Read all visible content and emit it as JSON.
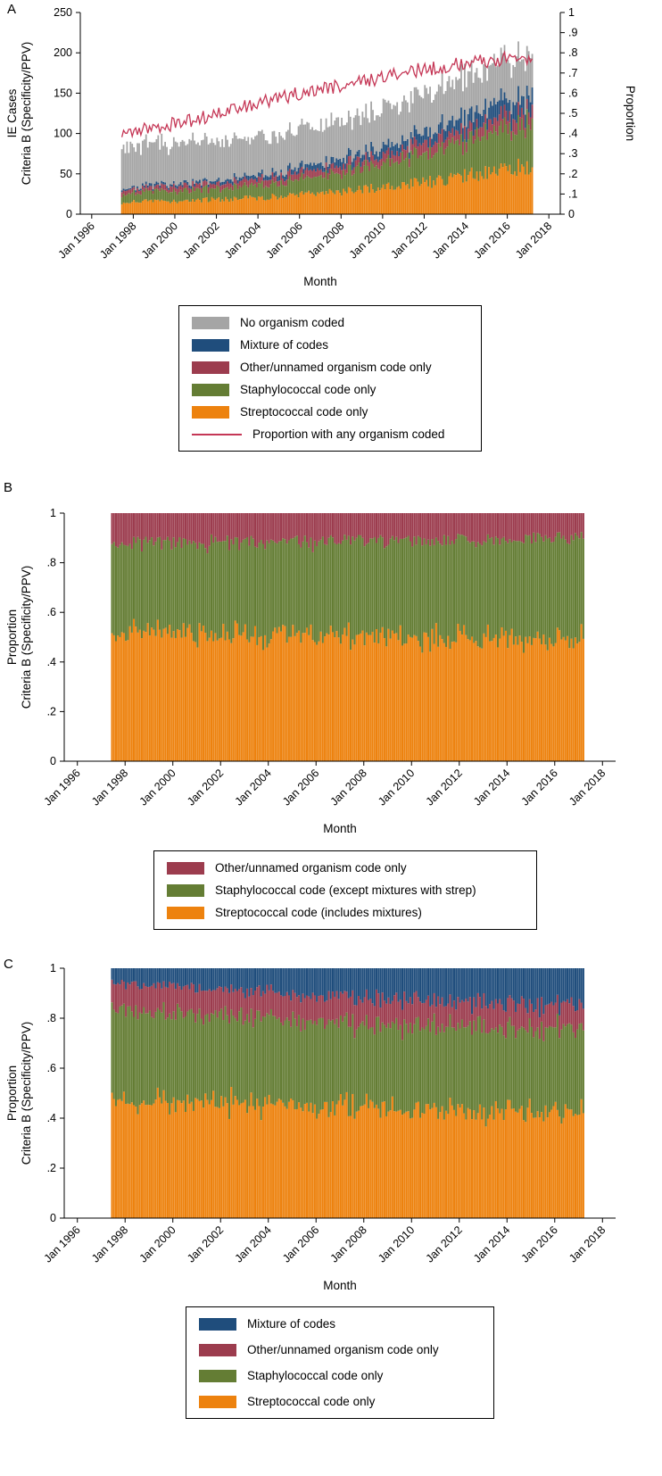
{
  "chart_data": [
    {
      "panel_label": "A",
      "type": "bar",
      "stacked": true,
      "normalize": false,
      "seed": 7,
      "xlabel": "Month",
      "ylabel_lines": [
        "IE Cases",
        "Criteria B (Specificity/PPV)"
      ],
      "ylabel_right": "Proportion",
      "ylim": [
        0,
        250
      ],
      "xlim": [
        1995.45,
        2018.55
      ],
      "bar_start": 1997.45,
      "bar_end": 2017.2,
      "anchor_year0": 1997,
      "yticks": [
        {
          "v": 0,
          "label": "0"
        },
        {
          "v": 50,
          "label": "50"
        },
        {
          "v": 100,
          "label": "100"
        },
        {
          "v": 150,
          "label": "150"
        },
        {
          "v": 200,
          "label": "200"
        },
        {
          "v": 250,
          "label": "250"
        }
      ],
      "y2ticks": [
        {
          "v": 0,
          "label": "0"
        },
        {
          "v": 0.1,
          "label": ".1"
        },
        {
          "v": 0.2,
          "label": ".2"
        },
        {
          "v": 0.3,
          "label": ".3"
        },
        {
          "v": 0.4,
          "label": ".4"
        },
        {
          "v": 0.5,
          "label": ".5"
        },
        {
          "v": 0.6,
          "label": ".6"
        },
        {
          "v": 0.7,
          "label": ".7"
        },
        {
          "v": 0.8,
          "label": ".8"
        },
        {
          "v": 0.9,
          "label": ".9"
        },
        {
          "v": 1,
          "label": "1"
        }
      ],
      "xticks": [
        {
          "v": 1996,
          "label": "Jan 1996"
        },
        {
          "v": 1998,
          "label": "Jan 1998"
        },
        {
          "v": 2000,
          "label": "Jan 2000"
        },
        {
          "v": 2002,
          "label": "Jan 2002"
        },
        {
          "v": 2004,
          "label": "Jan 2004"
        },
        {
          "v": 2006,
          "label": "Jan 2006"
        },
        {
          "v": 2008,
          "label": "Jan 2008"
        },
        {
          "v": 2010,
          "label": "Jan 2010"
        },
        {
          "v": 2012,
          "label": "Jan 2012"
        },
        {
          "v": 2014,
          "label": "Jan 2014"
        },
        {
          "v": 2016,
          "label": "Jan 2016"
        },
        {
          "v": 2018,
          "label": "Jan 2018"
        }
      ],
      "series": [
        {
          "name": "Streptococcal code only",
          "color": "#ed820e",
          "noise": 0.2,
          "annual": [
            15,
            15,
            16,
            16,
            17,
            18,
            19,
            20,
            22,
            24,
            26,
            28,
            30,
            33,
            36,
            39,
            43,
            47,
            52,
            57,
            60
          ]
        },
        {
          "name": "Staphylococcal code only",
          "color": "#647d34",
          "noise": 0.22,
          "annual": [
            11,
            11,
            12,
            12,
            13,
            14,
            15,
            16,
            17,
            19,
            21,
            23,
            26,
            29,
            32,
            36,
            40,
            44,
            48,
            52,
            55
          ]
        },
        {
          "name": "Other/unnamed organism code only",
          "color": "#9c3c4e",
          "noise": 0.3,
          "annual": [
            5,
            5,
            5,
            6,
            6,
            6,
            7,
            7,
            8,
            8,
            9,
            9,
            10,
            11,
            11,
            12,
            13,
            13,
            14,
            15,
            16
          ]
        },
        {
          "name": "Mixture of codes",
          "color": "#1f4d7c",
          "noise": 0.32,
          "annual": [
            2,
            2,
            3,
            3,
            3,
            4,
            4,
            5,
            5,
            6,
            7,
            8,
            9,
            10,
            11,
            13,
            14,
            16,
            18,
            20,
            22
          ]
        },
        {
          "name": "No organism coded",
          "color": "#a5a5a5",
          "noise": 0.18,
          "annual": [
            51,
            50,
            50,
            49,
            49,
            48,
            48,
            47,
            47,
            47,
            47,
            47,
            47,
            47,
            48,
            48,
            49,
            49,
            50,
            50,
            50
          ]
        }
      ],
      "line_series": {
        "name": "Proportion with any organism coded",
        "color": "#c53756",
        "axis": "right",
        "noise": 0.035,
        "annual": [
          0.39,
          0.41,
          0.43,
          0.45,
          0.47,
          0.5,
          0.52,
          0.55,
          0.57,
          0.6,
          0.62,
          0.64,
          0.66,
          0.68,
          0.7,
          0.72,
          0.73,
          0.75,
          0.76,
          0.77,
          0.78
        ]
      },
      "legend": {
        "position": "bottom",
        "entries": [
          {
            "label": "No organism coded",
            "color": "#a5a5a5",
            "type": "box"
          },
          {
            "label": "Mixture of codes",
            "color": "#1f4d7c",
            "type": "box"
          },
          {
            "label": "Other/unnamed organism code only",
            "color": "#9c3c4e",
            "type": "box"
          },
          {
            "label": "Staphylococcal code only",
            "color": "#647d34",
            "type": "box"
          },
          {
            "label": "Streptococcal code only",
            "color": "#ed820e",
            "type": "box"
          },
          {
            "label": "Proportion with any organism coded",
            "color": "#c53756",
            "type": "line"
          }
        ]
      }
    },
    {
      "panel_label": "B",
      "type": "bar",
      "stacked": true,
      "normalize": true,
      "seed": 11,
      "xlabel": "Month",
      "ylabel_lines": [
        "Proportion",
        "Criteria B (Specificity/PPV)"
      ],
      "ylim": [
        0,
        1
      ],
      "xlim": [
        1995.45,
        2018.55
      ],
      "bar_start": 1997.45,
      "bar_end": 2017.2,
      "anchor_year0": 1997,
      "yticks": [
        {
          "v": 0,
          "label": "0"
        },
        {
          "v": 0.2,
          "label": ".2"
        },
        {
          "v": 0.4,
          "label": ".4"
        },
        {
          "v": 0.6,
          "label": ".6"
        },
        {
          "v": 0.8,
          "label": ".8"
        },
        {
          "v": 1,
          "label": "1"
        }
      ],
      "xticks": [
        {
          "v": 1996,
          "label": "Jan 1996"
        },
        {
          "v": 1998,
          "label": "Jan 1998"
        },
        {
          "v": 2000,
          "label": "Jan 2000"
        },
        {
          "v": 2002,
          "label": "Jan 2002"
        },
        {
          "v": 2004,
          "label": "Jan 2004"
        },
        {
          "v": 2006,
          "label": "Jan 2006"
        },
        {
          "v": 2008,
          "label": "Jan 2008"
        },
        {
          "v": 2010,
          "label": "Jan 2010"
        },
        {
          "v": 2012,
          "label": "Jan 2012"
        },
        {
          "v": 2014,
          "label": "Jan 2014"
        },
        {
          "v": 2016,
          "label": "Jan 2016"
        },
        {
          "v": 2018,
          "label": "Jan 2018"
        }
      ],
      "series": [
        {
          "name": "Streptococcal code (includes mixtures)",
          "color": "#ed820e",
          "noise": 0.14,
          "annual": [
            0.52,
            0.52,
            0.52,
            0.51,
            0.51,
            0.51,
            0.51,
            0.5,
            0.5,
            0.5,
            0.5,
            0.5,
            0.5,
            0.5,
            0.49,
            0.49,
            0.49,
            0.49,
            0.49,
            0.49,
            0.49
          ]
        },
        {
          "name": "Staphylococcal code (except mixtures with strep)",
          "color": "#647d34",
          "noise": 0.14,
          "annual": [
            0.36,
            0.36,
            0.36,
            0.37,
            0.37,
            0.37,
            0.37,
            0.38,
            0.38,
            0.38,
            0.38,
            0.38,
            0.39,
            0.39,
            0.39,
            0.4,
            0.4,
            0.4,
            0.4,
            0.4,
            0.4
          ]
        },
        {
          "name": "Other/unnamed organism code only",
          "color": "#9c3c4e",
          "noise": 0.25,
          "annual": [
            0.12,
            0.12,
            0.12,
            0.12,
            0.12,
            0.12,
            0.12,
            0.12,
            0.12,
            0.12,
            0.11,
            0.11,
            0.11,
            0.11,
            0.11,
            0.11,
            0.11,
            0.11,
            0.1,
            0.1,
            0.1
          ]
        }
      ],
      "legend": {
        "position": "bottom",
        "entries": [
          {
            "label": "Other/unnamed organism code only",
            "color": "#9c3c4e",
            "type": "box"
          },
          {
            "label": "Staphylococcal code (except mixtures with strep)",
            "color": "#647d34",
            "type": "box"
          },
          {
            "label": "Streptococcal code (includes mixtures)",
            "color": "#ed820e",
            "type": "box"
          }
        ]
      }
    },
    {
      "panel_label": "C",
      "type": "bar",
      "stacked": true,
      "normalize": true,
      "seed": 13,
      "xlabel": "Month",
      "ylabel_lines": [
        "Proportion",
        "Criteria B (Specificity/PPV)"
      ],
      "ylim": [
        0,
        1
      ],
      "xlim": [
        1995.45,
        2018.55
      ],
      "bar_start": 1997.45,
      "bar_end": 2017.2,
      "anchor_year0": 1997,
      "yticks": [
        {
          "v": 0,
          "label": "0"
        },
        {
          "v": 0.2,
          "label": ".2"
        },
        {
          "v": 0.4,
          "label": ".4"
        },
        {
          "v": 0.6,
          "label": ".6"
        },
        {
          "v": 0.8,
          "label": ".8"
        },
        {
          "v": 1,
          "label": "1"
        }
      ],
      "xticks": [
        {
          "v": 1996,
          "label": "Jan 1996"
        },
        {
          "v": 1998,
          "label": "Jan 1998"
        },
        {
          "v": 2000,
          "label": "Jan 2000"
        },
        {
          "v": 2002,
          "label": "Jan 2002"
        },
        {
          "v": 2004,
          "label": "Jan 2004"
        },
        {
          "v": 2006,
          "label": "Jan 2006"
        },
        {
          "v": 2008,
          "label": "Jan 2008"
        },
        {
          "v": 2010,
          "label": "Jan 2010"
        },
        {
          "v": 2012,
          "label": "Jan 2012"
        },
        {
          "v": 2014,
          "label": "Jan 2014"
        },
        {
          "v": 2016,
          "label": "Jan 2016"
        },
        {
          "v": 2018,
          "label": "Jan 2018"
        }
      ],
      "series": [
        {
          "name": "Streptococcal code only",
          "color": "#ed820e",
          "noise": 0.14,
          "annual": [
            0.47,
            0.47,
            0.46,
            0.46,
            0.45,
            0.45,
            0.44,
            0.44,
            0.43,
            0.43,
            0.42,
            0.42,
            0.42,
            0.41,
            0.41,
            0.41,
            0.4,
            0.4,
            0.4,
            0.4,
            0.4
          ]
        },
        {
          "name": "Staphylococcal code only",
          "color": "#647d34",
          "noise": 0.15,
          "annual": [
            0.36,
            0.36,
            0.35,
            0.35,
            0.35,
            0.34,
            0.34,
            0.34,
            0.33,
            0.33,
            0.33,
            0.33,
            0.32,
            0.32,
            0.32,
            0.32,
            0.32,
            0.32,
            0.32,
            0.32,
            0.31
          ]
        },
        {
          "name": "Other/unnamed organism code only",
          "color": "#9c3c4e",
          "noise": 0.25,
          "annual": [
            0.11,
            0.11,
            0.11,
            0.11,
            0.1,
            0.1,
            0.1,
            0.1,
            0.1,
            0.1,
            0.1,
            0.1,
            0.1,
            0.1,
            0.09,
            0.09,
            0.09,
            0.09,
            0.09,
            0.09,
            0.09
          ]
        },
        {
          "name": "Mixture of codes",
          "color": "#1f4d7c",
          "noise": 0.3,
          "annual": [
            0.06,
            0.06,
            0.07,
            0.07,
            0.08,
            0.08,
            0.09,
            0.09,
            0.1,
            0.1,
            0.11,
            0.11,
            0.12,
            0.12,
            0.13,
            0.13,
            0.13,
            0.14,
            0.14,
            0.14,
            0.14
          ]
        }
      ],
      "legend": {
        "position": "bottom",
        "entries": [
          {
            "label": "Mixture of codes",
            "color": "#1f4d7c",
            "type": "box"
          },
          {
            "label": "Other/unnamed organism code only",
            "color": "#9c3c4e",
            "type": "box"
          },
          {
            "label": "Staphylococcal code only",
            "color": "#647d34",
            "type": "box"
          },
          {
            "label": "Streptococcal code only",
            "color": "#ed820e",
            "type": "box"
          }
        ]
      }
    }
  ]
}
